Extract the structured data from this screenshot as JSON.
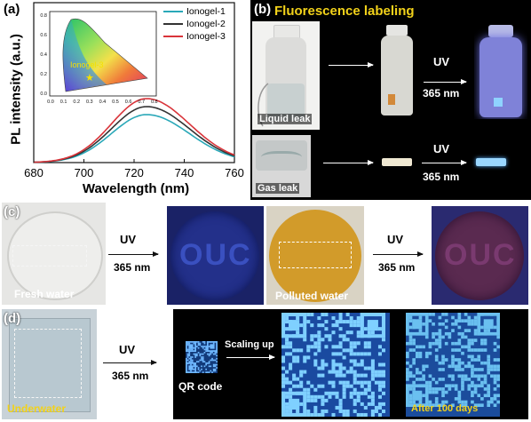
{
  "panel_a": {
    "label": "(a)",
    "ylabel": "PL intensity (a.u.)",
    "xlabel": "Wavelength (nm)",
    "xticks": [
      "680",
      "700",
      "720",
      "740",
      "760"
    ],
    "inset_xticks": [
      "0.0",
      "0.1",
      "0.2",
      "0.3",
      "0.4",
      "0.5",
      "0.6",
      "0.7",
      "0.8"
    ],
    "inset_yticks": [
      "0.0",
      "0.2",
      "0.4",
      "0.6",
      "0.8"
    ],
    "inset_label": "Ionogel-3",
    "legend": [
      {
        "name": "Ionogel-1",
        "color": "#2aa8b8"
      },
      {
        "name": "Ionogel-2",
        "color": "#333333"
      },
      {
        "name": "Ionogel-3",
        "color": "#d9343a"
      }
    ]
  },
  "panel_b": {
    "label": "(b)",
    "title": "Fluorescence labeling",
    "title_color": "#f2d21a",
    "liquid_leak": "Liquid leak",
    "gas_leak": "Gas leak",
    "uv": "UV",
    "wavelength": "365 nm"
  },
  "panel_c": {
    "label": "(c)",
    "fresh_water": "Fresh water",
    "polluted_water": "Polluted water",
    "uv": "UV",
    "wavelength": "365 nm",
    "logo_text": "OUC"
  },
  "panel_d": {
    "label": "(d)",
    "underwater": "Underwater",
    "uv": "UV",
    "wavelength": "365 nm",
    "scaling_up": "Scaling up",
    "qr_code": "QR code",
    "after": "After 100 days"
  },
  "chart_data": {
    "type": "line",
    "xlabel": "Wavelength (nm)",
    "ylabel": "PL intensity (a.u.)",
    "xlim": [
      680,
      760
    ],
    "series": [
      {
        "name": "Ionogel-1",
        "peak_x": 725,
        "peak_y": 0.3
      },
      {
        "name": "Ionogel-2",
        "peak_x": 725,
        "peak_y": 0.35
      },
      {
        "name": "Ionogel-3",
        "peak_x": 725,
        "peak_y": 0.4
      }
    ]
  }
}
